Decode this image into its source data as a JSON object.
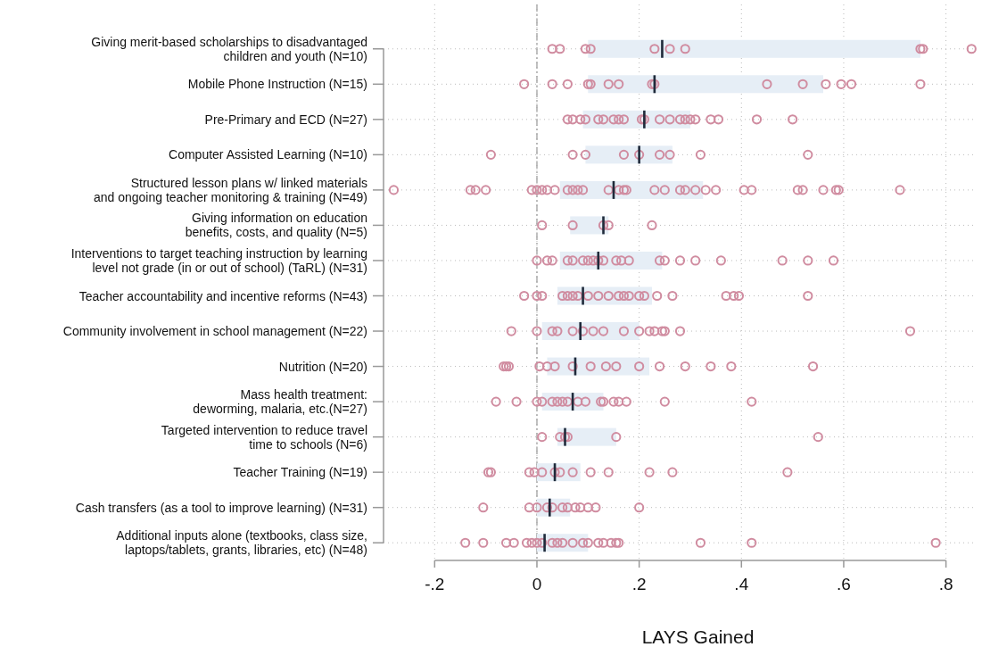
{
  "chart_data": {
    "type": "box",
    "orientation": "horizontal",
    "xlabel": "LAYS Gained",
    "boxes": [
      {
        "low": 0.1,
        "q1": 0.1,
        "median": 0.245,
        "q3": 0.75,
        "high": 0.75
      },
      {
        "low": 0.1,
        "q1": 0.1,
        "median": 0.23,
        "q3": 0.56,
        "high": 0.56
      },
      {
        "low": 0.09,
        "q1": 0.09,
        "median": 0.21,
        "q3": 0.3,
        "high": 0.3
      },
      {
        "low": 0.095,
        "q1": 0.095,
        "median": 0.2,
        "q3": 0.265,
        "high": 0.265
      },
      {
        "low": 0.045,
        "q1": 0.045,
        "median": 0.15,
        "q3": 0.325,
        "high": 0.325
      },
      {
        "low": 0.065,
        "q1": 0.065,
        "median": 0.13,
        "q3": 0.14,
        "high": 0.14
      },
      {
        "low": 0.045,
        "q1": 0.045,
        "median": 0.12,
        "q3": 0.245,
        "high": 0.245
      },
      {
        "low": 0.04,
        "q1": 0.04,
        "median": 0.09,
        "q3": 0.225,
        "high": 0.225
      },
      {
        "low": 0.01,
        "q1": 0.01,
        "median": 0.085,
        "q3": 0.2,
        "high": 0.2
      },
      {
        "low": 0.02,
        "q1": 0.02,
        "median": 0.075,
        "q3": 0.22,
        "high": 0.22
      },
      {
        "low": 0.01,
        "q1": 0.01,
        "median": 0.07,
        "q3": 0.13,
        "high": 0.13
      },
      {
        "low": 0.04,
        "q1": 0.04,
        "median": 0.055,
        "q3": 0.155,
        "high": 0.155
      },
      {
        "low": 0,
        "q1": 0,
        "median": 0.035,
        "q3": 0.085,
        "high": 0.085
      },
      {
        "low": 0,
        "q1": 0,
        "median": 0.025,
        "q3": 0.065,
        "high": 0.065
      },
      {
        "low": 0,
        "q1": 0,
        "median": 0.015,
        "q3": 0.1,
        "high": 0.1
      }
    ],
    "categories": [
      "Giving merit-based scholarships to disadvantaged\nchildren and youth (N=10)",
      "Mobile Phone Instruction (N=15)",
      "Pre-Primary and ECD (N=27)",
      "Computer Assisted Learning (N=10)",
      "Structured lesson plans w/ linked materials\nand ongoing teacher monitoring & training (N=49)",
      "Giving information on education\nbenefits, costs, and quality (N=5)",
      "Interventions to target teaching instruction by learning\nlevel not grade (in or out of school) (TaRL) (N=31)",
      "Teacher accountability and incentive reforms (N=43)",
      "Community involvement in school management (N=22)",
      "Nutrition (N=20)",
      "Mass health treatment:\ndeworming, malaria, etc.(N=27)",
      "Targeted intervention to reduce travel\ntime to schools (N=6)",
      "Teacher Training (N=19)",
      "Cash transfers (as a tool to improve learning) (N=31)",
      "Additional inputs alone (textbooks, class size,\nlaptops/tablets, grants, libraries, etc)  (N=48)"
    ],
    "xlim": [
      -0.3,
      0.86
    ],
    "xticks": [
      {
        "value": -0.2,
        "label": "-.2"
      },
      {
        "value": 0,
        "label": "0"
      },
      {
        "value": 0.2,
        "label": ".2"
      },
      {
        "value": 0.4,
        "label": ".4"
      },
      {
        "value": 0.6,
        "label": ".6"
      },
      {
        "value": 0.8,
        "label": ".8"
      }
    ],
    "grid": true,
    "ref_lines": [
      {
        "axis": "x",
        "value": 0,
        "color": "#a0a0a0",
        "line_style": "dashed"
      }
    ],
    "series": [
      {
        "type": "scatter",
        "color": "#d08ca0",
        "marker": "circle",
        "x": [
          "Giving merit-based scholarships to disadvantaged\nchildren and youth (N=10)",
          "Giving merit-based scholarships to disadvantaged\nchildren and youth (N=10)",
          "Giving merit-based scholarships to disadvantaged\nchildren and youth (N=10)",
          "Giving merit-based scholarships to disadvantaged\nchildren and youth (N=10)",
          "Giving merit-based scholarships to disadvantaged\nchildren and youth (N=10)",
          "Giving merit-based scholarships to disadvantaged\nchildren and youth (N=10)",
          "Giving merit-based scholarships to disadvantaged\nchildren and youth (N=10)",
          "Giving merit-based scholarships to disadvantaged\nchildren and youth (N=10)",
          "Giving merit-based scholarships to disadvantaged\nchildren and youth (N=10)",
          "Giving merit-based scholarships to disadvantaged\nchildren and youth (N=10)",
          "Mobile Phone Instruction (N=15)",
          "Mobile Phone Instruction (N=15)",
          "Mobile Phone Instruction (N=15)",
          "Mobile Phone Instruction (N=15)",
          "Mobile Phone Instruction (N=15)",
          "Mobile Phone Instruction (N=15)",
          "Mobile Phone Instruction (N=15)",
          "Mobile Phone Instruction (N=15)",
          "Mobile Phone Instruction (N=15)",
          "Mobile Phone Instruction (N=15)",
          "Mobile Phone Instruction (N=15)",
          "Mobile Phone Instruction (N=15)",
          "Mobile Phone Instruction (N=15)",
          "Mobile Phone Instruction (N=15)",
          "Mobile Phone Instruction (N=15)",
          "Pre-Primary and ECD (N=27)",
          "Pre-Primary and ECD (N=27)",
          "Pre-Primary and ECD (N=27)",
          "Pre-Primary and ECD (N=27)",
          "Pre-Primary and ECD (N=27)",
          "Pre-Primary and ECD (N=27)",
          "Pre-Primary and ECD (N=27)",
          "Pre-Primary and ECD (N=27)",
          "Pre-Primary and ECD (N=27)",
          "Pre-Primary and ECD (N=27)",
          "Pre-Primary and ECD (N=27)",
          "Pre-Primary and ECD (N=27)",
          "Pre-Primary and ECD (N=27)",
          "Pre-Primary and ECD (N=27)",
          "Pre-Primary and ECD (N=27)",
          "Pre-Primary and ECD (N=27)",
          "Pre-Primary and ECD (N=27)",
          "Pre-Primary and ECD (N=27)",
          "Pre-Primary and ECD (N=27)",
          "Pre-Primary and ECD (N=27)",
          "Pre-Primary and ECD (N=27)",
          "Computer Assisted Learning (N=10)",
          "Computer Assisted Learning (N=10)",
          "Computer Assisted Learning (N=10)",
          "Computer Assisted Learning (N=10)",
          "Computer Assisted Learning (N=10)",
          "Computer Assisted Learning (N=10)",
          "Computer Assisted Learning (N=10)",
          "Computer Assisted Learning (N=10)",
          "Computer Assisted Learning (N=10)",
          "Structured lesson plans w/ linked materials\nand ongoing teacher monitoring & training (N=49)",
          "Structured lesson plans w/ linked materials\nand ongoing teacher monitoring & training (N=49)",
          "Structured lesson plans w/ linked materials\nand ongoing teacher monitoring & training (N=49)",
          "Structured lesson plans w/ linked materials\nand ongoing teacher monitoring & training (N=49)",
          "Structured lesson plans w/ linked materials\nand ongoing teacher monitoring & training (N=49)",
          "Structured lesson plans w/ linked materials\nand ongoing teacher monitoring & training (N=49)",
          "Structured lesson plans w/ linked materials\nand ongoing teacher monitoring & training (N=49)",
          "Structured lesson plans w/ linked materials\nand ongoing teacher monitoring & training (N=49)",
          "Structured lesson plans w/ linked materials\nand ongoing teacher monitoring & training (N=49)",
          "Structured lesson plans w/ linked materials\nand ongoing teacher monitoring & training (N=49)",
          "Structured lesson plans w/ linked materials\nand ongoing teacher monitoring & training (N=49)",
          "Structured lesson plans w/ linked materials\nand ongoing teacher monitoring & training (N=49)",
          "Structured lesson plans w/ linked materials\nand ongoing teacher monitoring & training (N=49)",
          "Structured lesson plans w/ linked materials\nand ongoing teacher monitoring & training (N=49)",
          "Structured lesson plans w/ linked materials\nand ongoing teacher monitoring & training (N=49)",
          "Structured lesson plans w/ linked materials\nand ongoing teacher monitoring & training (N=49)",
          "Structured lesson plans w/ linked materials\nand ongoing teacher monitoring & training (N=49)",
          "Structured lesson plans w/ linked materials\nand ongoing teacher monitoring & training (N=49)",
          "Structured lesson plans w/ linked materials\nand ongoing teacher monitoring & training (N=49)",
          "Structured lesson plans w/ linked materials\nand ongoing teacher monitoring & training (N=49)",
          "Structured lesson plans w/ linked materials\nand ongoing teacher monitoring & training (N=49)",
          "Structured lesson plans w/ linked materials\nand ongoing teacher monitoring & training (N=49)",
          "Structured lesson plans w/ linked materials\nand ongoing teacher monitoring & training (N=49)",
          "Structured lesson plans w/ linked materials\nand ongoing teacher monitoring & training (N=49)",
          "Structured lesson plans w/ linked materials\nand ongoing teacher monitoring & training (N=49)",
          "Structured lesson plans w/ linked materials\nand ongoing teacher monitoring & training (N=49)",
          "Structured lesson plans w/ linked materials\nand ongoing teacher monitoring & training (N=49)",
          "Structured lesson plans w/ linked materials\nand ongoing teacher monitoring & training (N=49)",
          "Structured lesson plans w/ linked materials\nand ongoing teacher monitoring & training (N=49)",
          "Structured lesson plans w/ linked materials\nand ongoing teacher monitoring & training (N=49)",
          "Structured lesson plans w/ linked materials\nand ongoing teacher monitoring & training (N=49)",
          "Structured lesson plans w/ linked materials\nand ongoing teacher monitoring & training (N=49)",
          "Giving information on education\nbenefits, costs, and quality (N=5)",
          "Giving information on education\nbenefits, costs, and quality (N=5)",
          "Giving information on education\nbenefits, costs, and quality (N=5)",
          "Giving information on education\nbenefits, costs, and quality (N=5)",
          "Giving information on education\nbenefits, costs, and quality (N=5)",
          "Interventions to target teaching instruction by learning\nlevel not grade (in or out of school) (TaRL) (N=31)",
          "Interventions to target teaching instruction by learning\nlevel not grade (in or out of school) (TaRL) (N=31)",
          "Interventions to target teaching instruction by learning\nlevel not grade (in or out of school) (TaRL) (N=31)",
          "Interventions to target teaching instruction by learning\nlevel not grade (in or out of school) (TaRL) (N=31)",
          "Interventions to target teaching instruction by learning\nlevel not grade (in or out of school) (TaRL) (N=31)",
          "Interventions to target teaching instruction by learning\nlevel not grade (in or out of school) (TaRL) (N=31)",
          "Interventions to target teaching instruction by learning\nlevel not grade (in or out of school) (TaRL) (N=31)",
          "Interventions to target teaching instruction by learning\nlevel not grade (in or out of school) (TaRL) (N=31)",
          "Interventions to target teaching instruction by learning\nlevel not grade (in or out of school) (TaRL) (N=31)",
          "Interventions to target teaching instruction by learning\nlevel not grade (in or out of school) (TaRL) (N=31)",
          "Interventions to target teaching instruction by learning\nlevel not grade (in or out of school) (TaRL) (N=31)",
          "Interventions to target teaching instruction by learning\nlevel not grade (in or out of school) (TaRL) (N=31)",
          "Interventions to target teaching instruction by learning\nlevel not grade (in or out of school) (TaRL) (N=31)",
          "Interventions to target teaching instruction by learning\nlevel not grade (in or out of school) (TaRL) (N=31)",
          "Interventions to target teaching instruction by learning\nlevel not grade (in or out of school) (TaRL) (N=31)",
          "Interventions to target teaching instruction by learning\nlevel not grade (in or out of school) (TaRL) (N=31)",
          "Interventions to target teaching instruction by learning\nlevel not grade (in or out of school) (TaRL) (N=31)",
          "Interventions to target teaching instruction by learning\nlevel not grade (in or out of school) (TaRL) (N=31)",
          "Interventions to target teaching instruction by learning\nlevel not grade (in or out of school) (TaRL) (N=31)",
          "Interventions to target teaching instruction by learning\nlevel not grade (in or out of school) (TaRL) (N=31)",
          "Interventions to target teaching instruction by learning\nlevel not grade (in or out of school) (TaRL) (N=31)",
          "Teacher accountability and incentive reforms (N=43)",
          "Teacher accountability and incentive reforms (N=43)",
          "Teacher accountability and incentive reforms (N=43)",
          "Teacher accountability and incentive reforms (N=43)",
          "Teacher accountability and incentive reforms (N=43)",
          "Teacher accountability and incentive reforms (N=43)",
          "Teacher accountability and incentive reforms (N=43)",
          "Teacher accountability and incentive reforms (N=43)",
          "Teacher accountability and incentive reforms (N=43)",
          "Teacher accountability and incentive reforms (N=43)",
          "Teacher accountability and incentive reforms (N=43)",
          "Teacher accountability and incentive reforms (N=43)",
          "Teacher accountability and incentive reforms (N=43)",
          "Teacher accountability and incentive reforms (N=43)",
          "Teacher accountability and incentive reforms (N=43)",
          "Teacher accountability and incentive reforms (N=43)",
          "Teacher accountability and incentive reforms (N=43)",
          "Teacher accountability and incentive reforms (N=43)",
          "Teacher accountability and incentive reforms (N=43)",
          "Teacher accountability and incentive reforms (N=43)",
          "Teacher accountability and incentive reforms (N=43)",
          "Community involvement in school management (N=22)",
          "Community involvement in school management (N=22)",
          "Community involvement in school management (N=22)",
          "Community involvement in school management (N=22)",
          "Community involvement in school management (N=22)",
          "Community involvement in school management (N=22)",
          "Community involvement in school management (N=22)",
          "Community involvement in school management (N=22)",
          "Community involvement in school management (N=22)",
          "Community involvement in school management (N=22)",
          "Community involvement in school management (N=22)",
          "Community involvement in school management (N=22)",
          "Community involvement in school management (N=22)",
          "Community involvement in school management (N=22)",
          "Community involvement in school management (N=22)",
          "Community involvement in school management (N=22)",
          "Nutrition (N=20)",
          "Nutrition (N=20)",
          "Nutrition (N=20)",
          "Nutrition (N=20)",
          "Nutrition (N=20)",
          "Nutrition (N=20)",
          "Nutrition (N=20)",
          "Nutrition (N=20)",
          "Nutrition (N=20)",
          "Nutrition (N=20)",
          "Nutrition (N=20)",
          "Nutrition (N=20)",
          "Nutrition (N=20)",
          "Nutrition (N=20)",
          "Nutrition (N=20)",
          "Nutrition (N=20)",
          "Mass health treatment:\ndeworming, malaria, etc.(N=27)",
          "Mass health treatment:\ndeworming, malaria, etc.(N=27)",
          "Mass health treatment:\ndeworming, malaria, etc.(N=27)",
          "Mass health treatment:\ndeworming, malaria, etc.(N=27)",
          "Mass health treatment:\ndeworming, malaria, etc.(N=27)",
          "Mass health treatment:\ndeworming, malaria, etc.(N=27)",
          "Mass health treatment:\ndeworming, malaria, etc.(N=27)",
          "Mass health treatment:\ndeworming, malaria, etc.(N=27)",
          "Mass health treatment:\ndeworming, malaria, etc.(N=27)",
          "Mass health treatment:\ndeworming, malaria, etc.(N=27)",
          "Mass health treatment:\ndeworming, malaria, etc.(N=27)",
          "Mass health treatment:\ndeworming, malaria, etc.(N=27)",
          "Mass health treatment:\ndeworming, malaria, etc.(N=27)",
          "Mass health treatment:\ndeworming, malaria, etc.(N=27)",
          "Mass health treatment:\ndeworming, malaria, etc.(N=27)",
          "Mass health treatment:\ndeworming, malaria, etc.(N=27)",
          "Mass health treatment:\ndeworming, malaria, etc.(N=27)",
          "Targeted intervention to reduce travel\ntime to schools (N=6)",
          "Targeted intervention to reduce travel\ntime to schools (N=6)",
          "Targeted intervention to reduce travel\ntime to schools (N=6)",
          "Targeted intervention to reduce travel\ntime to schools (N=6)",
          "Targeted intervention to reduce travel\ntime to schools (N=6)",
          "Targeted intervention to reduce travel\ntime to schools (N=6)",
          "Teacher Training (N=19)",
          "Teacher Training (N=19)",
          "Teacher Training (N=19)",
          "Teacher Training (N=19)",
          "Teacher Training (N=19)",
          "Teacher Training (N=19)",
          "Teacher Training (N=19)",
          "Teacher Training (N=19)",
          "Teacher Training (N=19)",
          "Teacher Training (N=19)",
          "Teacher Training (N=19)",
          "Teacher Training (N=19)",
          "Teacher Training (N=19)",
          "Cash transfers (as a tool to improve learning) (N=31)",
          "Cash transfers (as a tool to improve learning) (N=31)",
          "Cash transfers (as a tool to improve learning) (N=31)",
          "Cash transfers (as a tool to improve learning) (N=31)",
          "Cash transfers (as a tool to improve learning) (N=31)",
          "Cash transfers (as a tool to improve learning) (N=31)",
          "Cash transfers (as a tool to improve learning) (N=31)",
          "Cash transfers (as a tool to improve learning) (N=31)",
          "Cash transfers (as a tool to improve learning) (N=31)",
          "Cash transfers (as a tool to improve learning) (N=31)",
          "Cash transfers (as a tool to improve learning) (N=31)",
          "Cash transfers (as a tool to improve learning) (N=31)",
          "Additional inputs alone (textbooks, class size,\nlaptops/tablets, grants, libraries, etc)  (N=48)",
          "Additional inputs alone (textbooks, class size,\nlaptops/tablets, grants, libraries, etc)  (N=48)",
          "Additional inputs alone (textbooks, class size,\nlaptops/tablets, grants, libraries, etc)  (N=48)",
          "Additional inputs alone (textbooks, class size,\nlaptops/tablets, grants, libraries, etc)  (N=48)",
          "Additional inputs alone (textbooks, class size,\nlaptops/tablets, grants, libraries, etc)  (N=48)",
          "Additional inputs alone (textbooks, class size,\nlaptops/tablets, grants, libraries, etc)  (N=48)",
          "Additional inputs alone (textbooks, class size,\nlaptops/tablets, grants, libraries, etc)  (N=48)",
          "Additional inputs alone (textbooks, class size,\nlaptops/tablets, grants, libraries, etc)  (N=48)",
          "Additional inputs alone (textbooks, class size,\nlaptops/tablets, grants, libraries, etc)  (N=48)",
          "Additional inputs alone (textbooks, class size,\nlaptops/tablets, grants, libraries, etc)  (N=48)",
          "Additional inputs alone (textbooks, class size,\nlaptops/tablets, grants, libraries, etc)  (N=48)",
          "Additional inputs alone (textbooks, class size,\nlaptops/tablets, grants, libraries, etc)  (N=48)",
          "Additional inputs alone (textbooks, class size,\nlaptops/tablets, grants, libraries, etc)  (N=48)",
          "Additional inputs alone (textbooks, class size,\nlaptops/tablets, grants, libraries, etc)  (N=48)",
          "Additional inputs alone (textbooks, class size,\nlaptops/tablets, grants, libraries, etc)  (N=48)",
          "Additional inputs alone (textbooks, class size,\nlaptops/tablets, grants, libraries, etc)  (N=48)",
          "Additional inputs alone (textbooks, class size,\nlaptops/tablets, grants, libraries, etc)  (N=48)",
          "Additional inputs alone (textbooks, class size,\nlaptops/tablets, grants, libraries, etc)  (N=48)",
          "Additional inputs alone (textbooks, class size,\nlaptops/tablets, grants, libraries, etc)  (N=48)",
          "Additional inputs alone (textbooks, class size,\nlaptops/tablets, grants, libraries, etc)  (N=48)",
          "Additional inputs alone (textbooks, class size,\nlaptops/tablets, grants, libraries, etc)  (N=48)",
          "Additional inputs alone (textbooks, class size,\nlaptops/tablets, grants, libraries, etc)  (N=48)"
        ],
        "values": [
          0.03,
          0.045,
          0.095,
          0.105,
          0.23,
          0.26,
          0.29,
          0.75,
          0.755,
          0.85,
          -0.025,
          0.03,
          0.06,
          0.1,
          0.105,
          0.14,
          0.16,
          0.225,
          0.23,
          0.45,
          0.52,
          0.565,
          0.595,
          0.615,
          0.75,
          0.06,
          0.07,
          0.085,
          0.095,
          0.12,
          0.13,
          0.15,
          0.16,
          0.17,
          0.205,
          0.21,
          0.24,
          0.26,
          0.28,
          0.29,
          0.3,
          0.31,
          0.34,
          0.355,
          0.43,
          0.5,
          -0.09,
          0.07,
          0.095,
          0.17,
          0.2,
          0.24,
          0.26,
          0.32,
          0.53,
          -0.28,
          -0.13,
          -0.12,
          -0.1,
          -0.01,
          0,
          0.01,
          0.02,
          0.035,
          0.06,
          0.07,
          0.08,
          0.09,
          0.14,
          0.16,
          0.17,
          0.175,
          0.23,
          0.25,
          0.28,
          0.29,
          0.31,
          0.33,
          0.35,
          0.405,
          0.42,
          0.51,
          0.52,
          0.56,
          0.585,
          0.59,
          0.71,
          0.01,
          0.07,
          0.13,
          0.14,
          0.225,
          0,
          0.02,
          0.03,
          0.06,
          0.07,
          0.09,
          0.1,
          0.11,
          0.12,
          0.13,
          0.155,
          0.165,
          0.18,
          0.24,
          0.25,
          0.28,
          0.31,
          0.36,
          0.48,
          0.53,
          0.58,
          -0.025,
          0,
          0.01,
          0.05,
          0.06,
          0.07,
          0.08,
          0.1,
          0.12,
          0.14,
          0.16,
          0.17,
          0.18,
          0.2,
          0.21,
          0.235,
          0.265,
          0.37,
          0.385,
          0.395,
          0.53,
          -0.05,
          0,
          0.03,
          0.04,
          0.07,
          0.09,
          0.11,
          0.13,
          0.17,
          0.2,
          0.22,
          0.23,
          0.245,
          0.25,
          0.28,
          0.73,
          -0.065,
          -0.06,
          -0.055,
          0.005,
          0.02,
          0.035,
          0.07,
          0.105,
          0.135,
          0.155,
          0.2,
          0.24,
          0.29,
          0.34,
          0.38,
          0.54,
          -0.08,
          -0.04,
          0,
          0.01,
          0.03,
          0.04,
          0.05,
          0.06,
          0.08,
          0.095,
          0.125,
          0.13,
          0.15,
          0.16,
          0.175,
          0.25,
          0.42,
          0.01,
          0.045,
          0.055,
          0.06,
          0.155,
          0.55,
          -0.095,
          -0.09,
          -0.015,
          -0.005,
          0.01,
          0.035,
          0.045,
          0.07,
          0.105,
          0.14,
          0.22,
          0.265,
          0.49,
          -0.105,
          -0.015,
          0,
          0.02,
          0.03,
          0.05,
          0.06,
          0.075,
          0.085,
          0.1,
          0.115,
          0.2,
          -0.14,
          -0.105,
          -0.06,
          -0.045,
          -0.02,
          -0.01,
          0,
          0.01,
          0.03,
          0.04,
          0.05,
          0.07,
          0.09,
          0.1,
          0.12,
          0.13,
          0.145,
          0.155,
          0.16,
          0.32,
          0.42,
          0.78
        ]
      }
    ]
  }
}
